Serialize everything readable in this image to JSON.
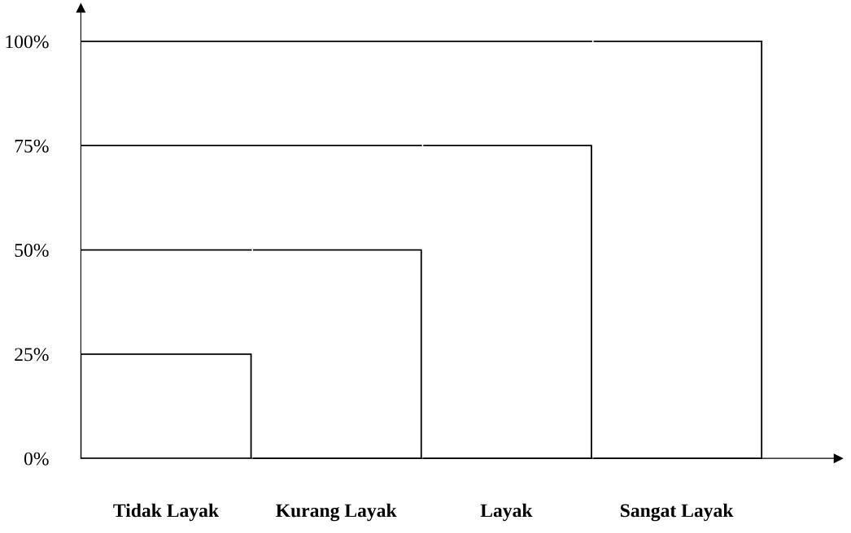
{
  "chart_data": {
    "type": "bar",
    "categories": [
      "Tidak Layak",
      "Kurang Layak",
      "Layak",
      "Sangat Layak"
    ],
    "values": [
      25,
      50,
      75,
      100
    ],
    "color": "#000000",
    "ylim": [
      0,
      108
    ],
    "yticks": [
      {
        "value": 0,
        "label": "0%"
      },
      {
        "value": 25,
        "label": "25%"
      },
      {
        "value": 50,
        "label": "50%"
      },
      {
        "value": 75,
        "label": "75%"
      },
      {
        "value": 100,
        "label": "100%"
      }
    ],
    "ref_lines": [
      {
        "axis": "y",
        "value": 50
      },
      {
        "axis": "y",
        "value": 75
      },
      {
        "axis": "y",
        "value": 100
      }
    ],
    "legend": false
  }
}
